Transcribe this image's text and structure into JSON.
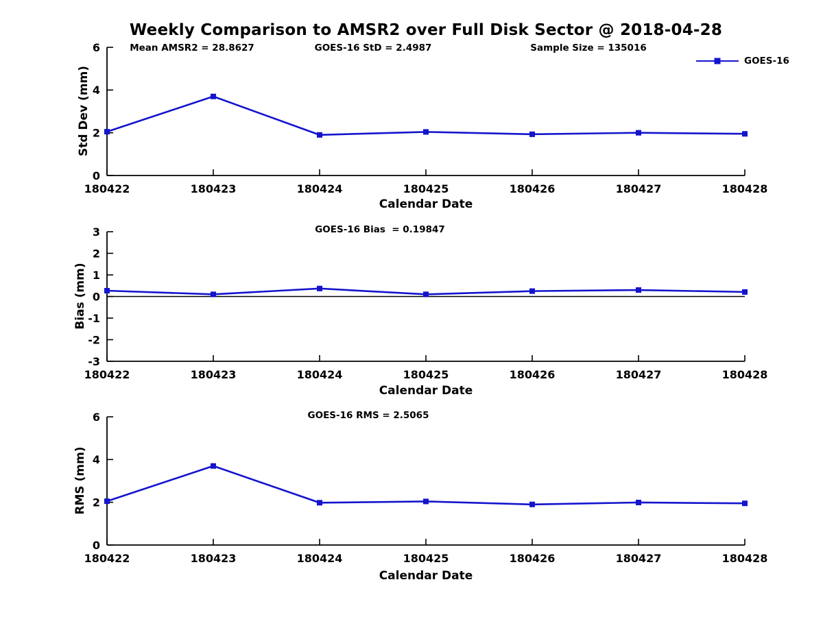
{
  "figure": {
    "title": "Weekly Comparison to AMSR2 over Full Disk Sector @ 2018-04-28",
    "line_color": "#1414cd",
    "axis_color": "#000000",
    "background_color": "#ffffff"
  },
  "chart_data": [
    {
      "type": "line",
      "ylabel": "Std Dev (mm)",
      "xlabel": "Calendar Date",
      "categories": [
        "180422",
        "180423",
        "180424",
        "180425",
        "180426",
        "180427",
        "180428"
      ],
      "series": [
        {
          "name": "GOES-16",
          "values": [
            2.05,
            3.7,
            1.9,
            2.04,
            1.93,
            2.0,
            1.95
          ],
          "marker": "square",
          "color": "#1414cd"
        }
      ],
      "ylim": [
        0,
        6
      ],
      "yticks": [
        0,
        2,
        4,
        6
      ],
      "annotations": [
        "Mean AMSR2 = 28.8627",
        "GOES-16 StD = 2.4987",
        "Sample Size = 135016"
      ],
      "legend_position": "top-right",
      "grid": false,
      "zero_line": false
    },
    {
      "type": "line",
      "ylabel": "Bias (mm)",
      "xlabel": "Calendar Date",
      "categories": [
        "180422",
        "180423",
        "180424",
        "180425",
        "180426",
        "180427",
        "180428"
      ],
      "series": [
        {
          "name": "GOES-16",
          "values": [
            0.27,
            0.1,
            0.37,
            0.1,
            0.25,
            0.3,
            0.21
          ],
          "marker": "square",
          "color": "#1414cd"
        }
      ],
      "ylim": [
        -3,
        3
      ],
      "yticks": [
        -3,
        -2,
        -1,
        0,
        1,
        2,
        3
      ],
      "annotations": [
        "GOES-16 Bias  = 0.19847"
      ],
      "legend_position": "none",
      "grid": false,
      "zero_line": true
    },
    {
      "type": "line",
      "ylabel": "RMS (mm)",
      "xlabel": "Calendar Date",
      "categories": [
        "180422",
        "180423",
        "180424",
        "180425",
        "180426",
        "180427",
        "180428"
      ],
      "series": [
        {
          "name": "GOES-16",
          "values": [
            2.05,
            3.7,
            1.98,
            2.04,
            1.9,
            1.99,
            1.95
          ],
          "marker": "square",
          "color": "#1414cd"
        }
      ],
      "ylim": [
        0,
        6
      ],
      "yticks": [
        0,
        2,
        4,
        6
      ],
      "annotations": [
        "GOES-16 RMS = 2.5065"
      ],
      "legend_position": "none",
      "grid": false,
      "zero_line": false
    }
  ]
}
